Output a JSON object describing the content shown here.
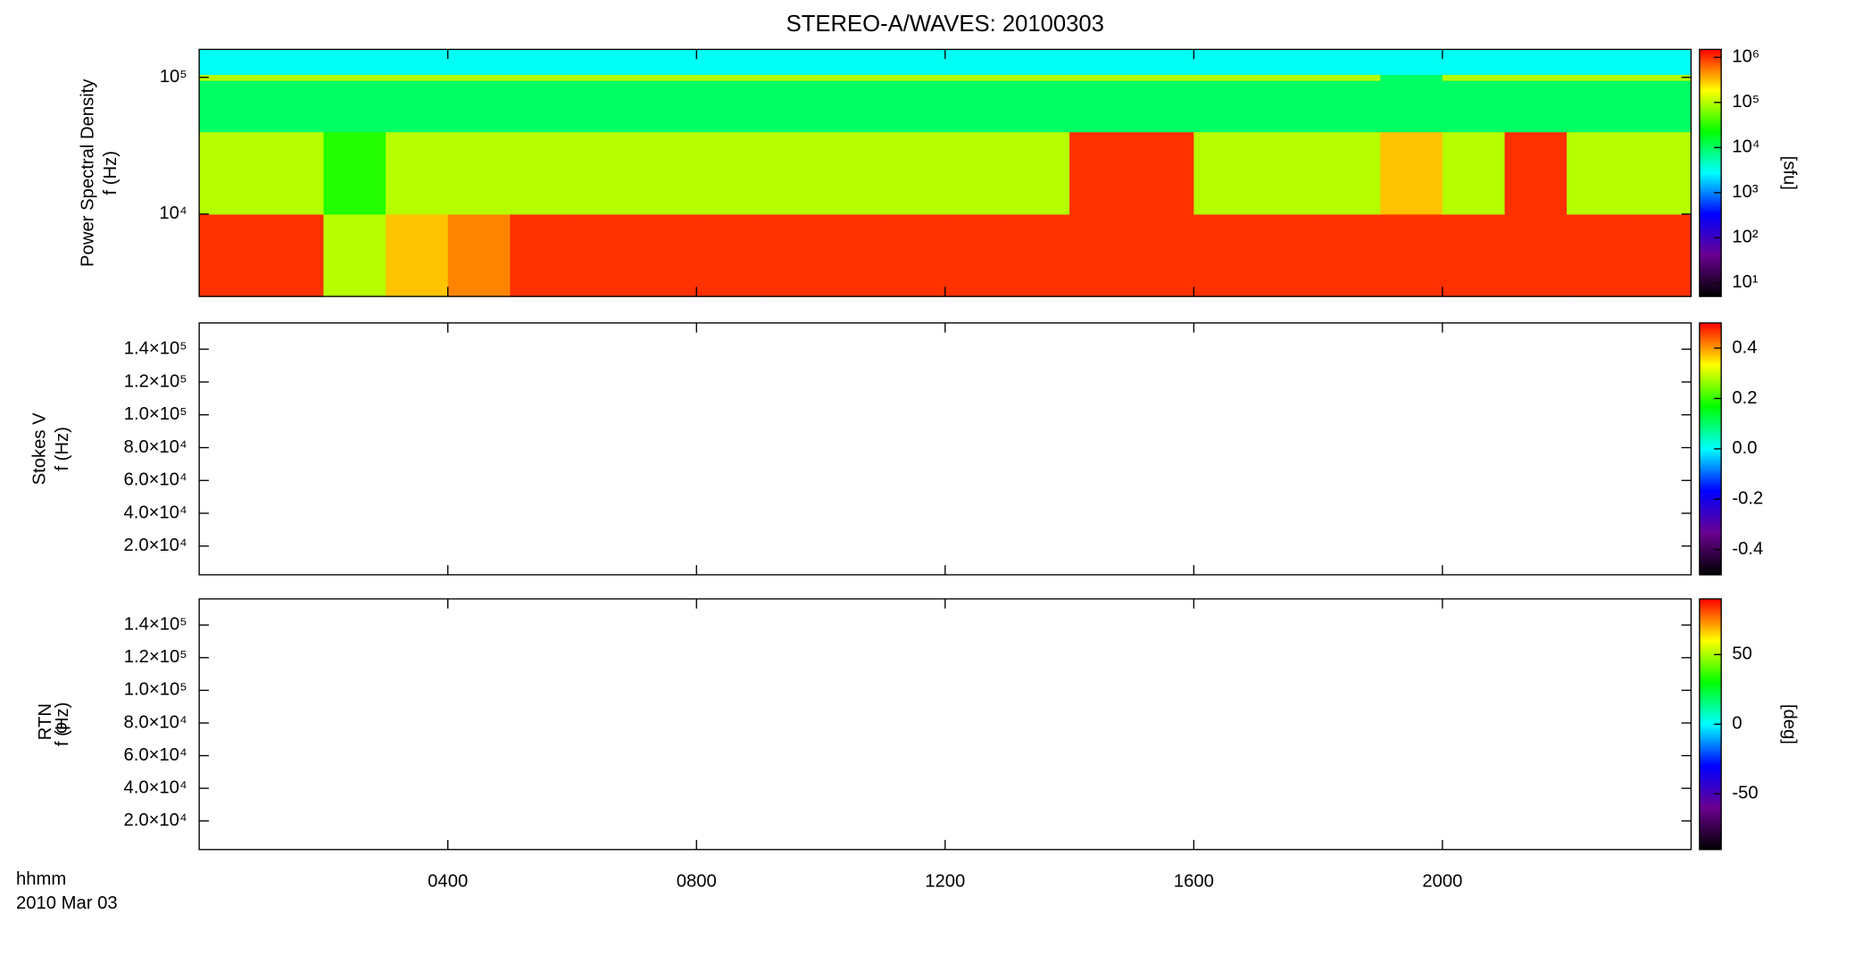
{
  "chart_data": [
    {
      "type": "heatmap",
      "title": "STEREO-A/WAVES: 20100303",
      "ylabel": [
        "Power Spectral Density",
        "f (Hz)"
      ],
      "ylog": true,
      "ylim": [
        2500,
        160000
      ],
      "yticks": [
        {
          "value": 10000,
          "label": "10⁴"
        },
        {
          "value": 100000,
          "label": "10⁵"
        }
      ],
      "xlim": [
        0,
        24
      ],
      "x": [
        0,
        1,
        2,
        3,
        4,
        5,
        6,
        7,
        8,
        9,
        10,
        11,
        12,
        13,
        14,
        15,
        16,
        17,
        18,
        19,
        20,
        21,
        22,
        23,
        24
      ],
      "y": [
        2500,
        10000,
        40000,
        95000,
        105000,
        160000
      ],
      "z": [
        [
          1000000,
          1000000,
          100000,
          300000,
          500000,
          1000000,
          1000000,
          1000000,
          1000000,
          1000000,
          1000000,
          1000000,
          1000000,
          1000000,
          1000000,
          1000000,
          1000000,
          1000000,
          1000000,
          1000000,
          1000000,
          1000000,
          1000000,
          1000000
        ],
        [
          100000,
          100000,
          30000,
          100000,
          100000,
          100000,
          100000,
          100000,
          100000,
          100000,
          100000,
          100000,
          100000,
          100000,
          1000000,
          1000000,
          100000,
          100000,
          100000,
          300000,
          100000,
          1000000,
          100000,
          100000
        ],
        [
          10000,
          10000,
          10000,
          10000,
          10000,
          10000,
          10000,
          10000,
          10000,
          10000,
          10000,
          10000,
          10000,
          10000,
          10000,
          10000,
          10000,
          10000,
          10000,
          10000,
          10000,
          10000,
          10000,
          10000
        ],
        [
          100000,
          100000,
          100000,
          100000,
          100000,
          100000,
          100000,
          100000,
          100000,
          100000,
          100000,
          100000,
          100000,
          100000,
          100000,
          100000,
          100000,
          100000,
          100000,
          10000,
          100000,
          100000,
          100000,
          100000
        ],
        [
          3000,
          3000,
          3000,
          3000,
          3000,
          3000,
          3000,
          3000,
          3000,
          3000,
          3000,
          3000,
          3000,
          3000,
          3000,
          3000,
          3000,
          3000,
          3000,
          3000,
          3000,
          3000,
          3000,
          3000
        ]
      ],
      "zlog": true,
      "zlim": [
        5,
        1500000
      ],
      "zticks": [
        {
          "value": 10,
          "label": "10¹"
        },
        {
          "value": 100,
          "label": "10²"
        },
        {
          "value": 1000,
          "label": "10³"
        },
        {
          "value": 10000,
          "label": "10⁴"
        },
        {
          "value": 100000,
          "label": "10⁵"
        },
        {
          "value": 1000000,
          "label": "10⁶"
        }
      ],
      "zlabel": "[sfu]",
      "colorscale": [
        "#000000",
        "#6a0090",
        "#0000ff",
        "#00ffff",
        "#00ff00",
        "#ffff00",
        "#ff0000"
      ]
    },
    {
      "type": "heatmap",
      "ylabel": [
        "Stokes V",
        "f (Hz)"
      ],
      "ylim": [
        2500,
        156000
      ],
      "yticks": [
        {
          "value": 20000,
          "label": "2.0×10⁴"
        },
        {
          "value": 40000,
          "label": "4.0×10⁴"
        },
        {
          "value": 60000,
          "label": "6.0×10⁴"
        },
        {
          "value": 80000,
          "label": "8.0×10⁴"
        },
        {
          "value": 100000,
          "label": "1.0×10⁵"
        },
        {
          "value": 120000,
          "label": "1.2×10⁵"
        },
        {
          "value": 140000,
          "label": "1.4×10⁵"
        }
      ],
      "xlim": [
        0,
        24
      ],
      "zlim": [
        -0.5,
        0.5
      ],
      "zticks": [
        -0.4,
        -0.2,
        {
          "value": 0,
          "label": "0.0"
        },
        0.2,
        0.4
      ],
      "colorscale": [
        "#000000",
        "#6a0090",
        "#0000ff",
        "#00ffff",
        "#00ff00",
        "#ffff00",
        "#ff0000"
      ]
    },
    {
      "type": "heatmap",
      "ylabel": [
        "φ",
        "f (Hz)"
      ],
      "ylabel_subscript": "RTN",
      "ylim": [
        2500,
        156000
      ],
      "yticks": [
        {
          "value": 20000,
          "label": "2.0×10⁴"
        },
        {
          "value": 40000,
          "label": "4.0×10⁴"
        },
        {
          "value": 60000,
          "label": "6.0×10⁴"
        },
        {
          "value": 80000,
          "label": "8.0×10⁴"
        },
        {
          "value": 100000,
          "label": "1.0×10⁵"
        },
        {
          "value": 120000,
          "label": "1.2×10⁵"
        },
        {
          "value": 140000,
          "label": "1.4×10⁵"
        }
      ],
      "xlim": [
        0,
        24
      ],
      "xticks": [
        {
          "value": 4,
          "label": "0400"
        },
        {
          "value": 8,
          "label": "0800"
        },
        {
          "value": 12,
          "label": "1200"
        },
        {
          "value": 16,
          "label": "1600"
        },
        {
          "value": 20,
          "label": "2000"
        }
      ],
      "xlabel": [
        "hhmm",
        "2010 Mar 03"
      ],
      "zlim": [
        -90,
        90
      ],
      "zticks": [
        -50,
        0,
        50
      ],
      "zlabel": "[deg]",
      "colorscale": [
        "#000000",
        "#6a0090",
        "#0000ff",
        "#00ffff",
        "#00ff00",
        "#ffff00",
        "#ff0000"
      ]
    }
  ]
}
